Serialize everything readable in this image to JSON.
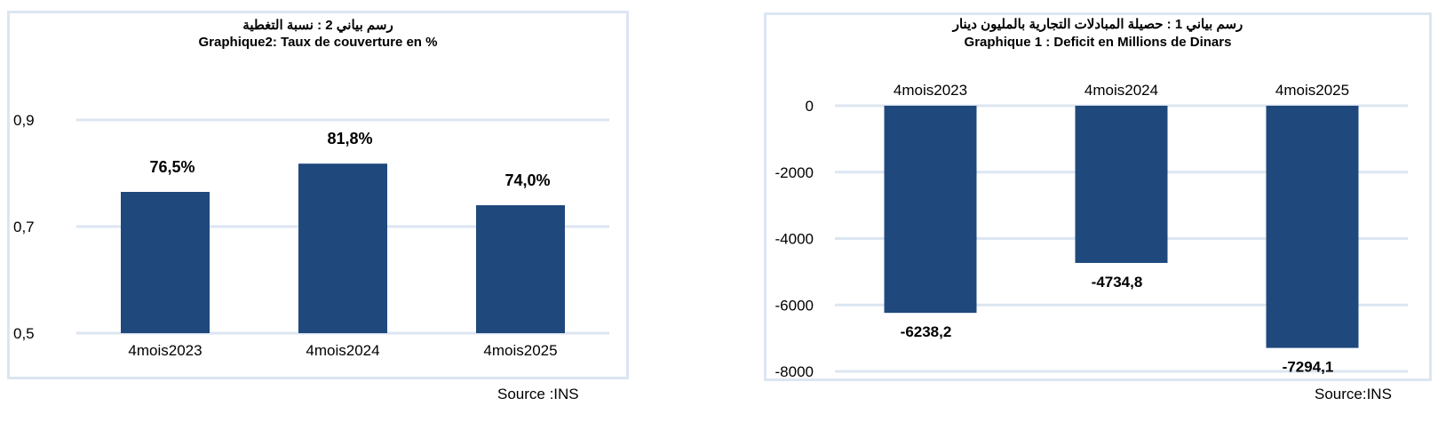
{
  "colors": {
    "bar": "#1f497d",
    "grid": "#dce6f1",
    "frame": "#dce6f1"
  },
  "left_panel": {
    "title_ar": "رسم بياني 2 :  نسبة التغطية",
    "title_fr": "Graphique2: Taux de couverture en %",
    "source": "Source :INS"
  },
  "right_panel": {
    "title_ar": "رسم بياني 1 :  حصيلة المبادلات التجارية بالمليون دينار",
    "title_fr": "Graphique 1 : Deficit en Millions de Dinars",
    "source": "Source:INS"
  },
  "chart_data": [
    {
      "type": "bar",
      "title": "Graphique2: Taux de couverture en %",
      "categories": [
        "4mois2023",
        "4mois2024",
        "4mois2025"
      ],
      "values": [
        0.765,
        0.818,
        0.74
      ],
      "data_labels": [
        "76,5%",
        "81,8%",
        "74,0%"
      ],
      "ylim": [
        0.5,
        0.9
      ],
      "yticks": [
        0.5,
        0.7,
        0.9
      ],
      "ytick_labels": [
        "0,5",
        "0,7",
        "0,9"
      ],
      "grid": true
    },
    {
      "type": "bar",
      "title": "Graphique 1 : Deficit en Millions de Dinars",
      "categories": [
        "4mois2023",
        "4mois2024",
        "4mois2025"
      ],
      "values": [
        -6238.2,
        -4734.8,
        -7294.1
      ],
      "data_labels": [
        "-6238,2",
        "-4734,8",
        "-7294,1"
      ],
      "ylim": [
        -8000,
        0
      ],
      "yticks": [
        0,
        -2000,
        -4000,
        -6000,
        -8000
      ],
      "ytick_labels": [
        "0",
        "-2000",
        "-4000",
        "-6000",
        "-8000"
      ],
      "grid": true,
      "category_axis_position": "top"
    }
  ]
}
